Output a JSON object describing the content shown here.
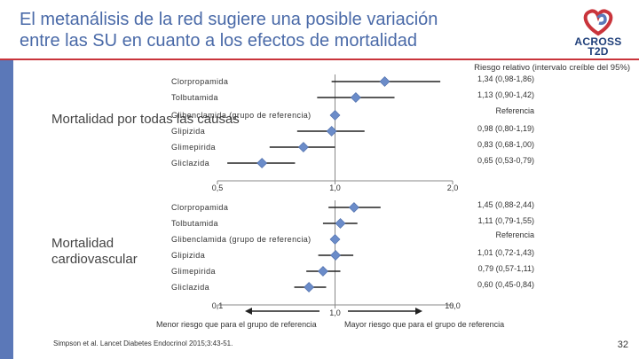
{
  "title": "El metanálisis de la red sugiere una posible variación entre las SU en cuanto a los efectos de mortalidad",
  "logo": {
    "line1": "ACROSS",
    "line2": "T2D"
  },
  "rr_header": "Riesgo relativo (intervalo creíble del 95%)",
  "colors": {
    "accent": "#4a6aa8",
    "bar": "#5b78b8",
    "red": "#c9343b",
    "marker": "#6b8cc9"
  },
  "chart_data": [
    {
      "type": "forest",
      "section": "Mortalidad por todas las causas",
      "x_scale": "log",
      "xlim": [
        0.5,
        2.0
      ],
      "ticks": [
        "0,5",
        "1,0",
        "2,0"
      ],
      "rows": [
        {
          "drug": "Clorpropamida",
          "estimate": 1.34,
          "low": 0.98,
          "high": 1.86,
          "label": "1,34 (0,98-1,86)"
        },
        {
          "drug": "Tolbutamida",
          "estimate": 1.13,
          "low": 0.9,
          "high": 1.42,
          "label": "1,13 (0,90-1,42)"
        },
        {
          "drug": "Glibenclamida (grupo de referencia)",
          "estimate": 1.0,
          "low": 1.0,
          "high": 1.0,
          "label": "Referencia"
        },
        {
          "drug": "Glipizida",
          "estimate": 0.98,
          "low": 0.8,
          "high": 1.19,
          "label": "0,98 (0,80-1,19)"
        },
        {
          "drug": "Glimepirida",
          "estimate": 0.83,
          "low": 0.68,
          "high": 1.0,
          "label": "0,83 (0,68-1,00)"
        },
        {
          "drug": "Gliclazida",
          "estimate": 0.65,
          "low": 0.53,
          "high": 0.79,
          "label": "0,65 (0,53-0,79)"
        }
      ]
    },
    {
      "type": "forest",
      "section": "Mortalidad cardiovascular",
      "x_scale": "log",
      "xlim": [
        0.1,
        10.0
      ],
      "ticks": [
        "0,1",
        "1,0",
        "10,0"
      ],
      "rows": [
        {
          "drug": "Clorpropamida",
          "estimate": 1.45,
          "low": 0.88,
          "high": 2.44,
          "label": "1,45 (0,88-2,44)"
        },
        {
          "drug": "Tolbutamida",
          "estimate": 1.11,
          "low": 0.79,
          "high": 1.55,
          "label": "1,11 (0,79-1,55)"
        },
        {
          "drug": "Glibenclamida (grupo de referencia)",
          "estimate": 1.0,
          "low": 1.0,
          "high": 1.0,
          "label": "Referencia"
        },
        {
          "drug": "Glipizida",
          "estimate": 1.01,
          "low": 0.72,
          "high": 1.43,
          "label": "1,01 (0,72-1,43)"
        },
        {
          "drug": "Glimepirida",
          "estimate": 0.79,
          "low": 0.57,
          "high": 1.11,
          "label": "0,79 (0,57-1,11)"
        },
        {
          "drug": "Gliclazida",
          "estimate": 0.6,
          "low": 0.45,
          "high": 0.84,
          "label": "0,60 (0,45-0,84)"
        }
      ]
    }
  ],
  "sections": {
    "all_cause": "Mortalidad por todas las causas",
    "cv": "Mortalidad cardiovascular"
  },
  "bottom": {
    "left": "Menor riesgo que para el grupo de referencia",
    "right": "Mayor riesgo que para el grupo de referencia"
  },
  "citation": "Simpson et al. Lancet Diabetes Endocrinol 2015;3:43-51.",
  "page_number": "32"
}
